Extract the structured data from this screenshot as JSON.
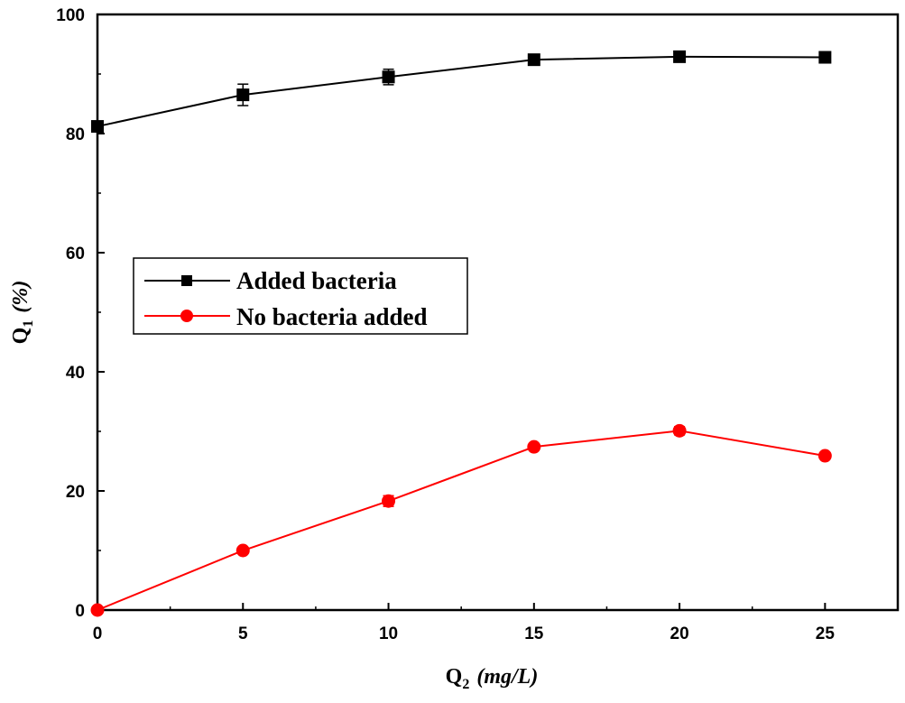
{
  "chart_data": {
    "type": "line",
    "title": "",
    "xlabel": {
      "main": "Q",
      "sub": "2",
      "unit": "(mg/L)"
    },
    "ylabel": {
      "main": "Q",
      "sub": "1",
      "unit": "(%)"
    },
    "xlim": [
      0,
      27.5
    ],
    "ylim": [
      0,
      100
    ],
    "xticks": [
      "0",
      "5",
      "10",
      "15",
      "20",
      "25"
    ],
    "yticks": [
      "0",
      "20",
      "40",
      "60",
      "80",
      "100"
    ],
    "grid": false,
    "legend_position": "center-left",
    "series": [
      {
        "name": "Added bacteria",
        "color": "#000000",
        "marker": "square",
        "x": [
          0,
          5,
          10,
          15,
          20,
          25
        ],
        "y": [
          81.2,
          86.5,
          89.5,
          92.4,
          92.9,
          92.8
        ],
        "err": [
          0.6,
          1.8,
          1.3,
          0.5,
          0.5,
          0.4
        ]
      },
      {
        "name": "No bacteria added",
        "color": "#ff0000",
        "marker": "circle",
        "x": [
          0,
          5,
          10,
          15,
          20,
          25
        ],
        "y": [
          0.0,
          10.0,
          18.3,
          27.4,
          30.1,
          25.9
        ],
        "err": [
          0.2,
          0.4,
          0.9,
          0.5,
          0.7,
          0.4
        ]
      }
    ]
  }
}
